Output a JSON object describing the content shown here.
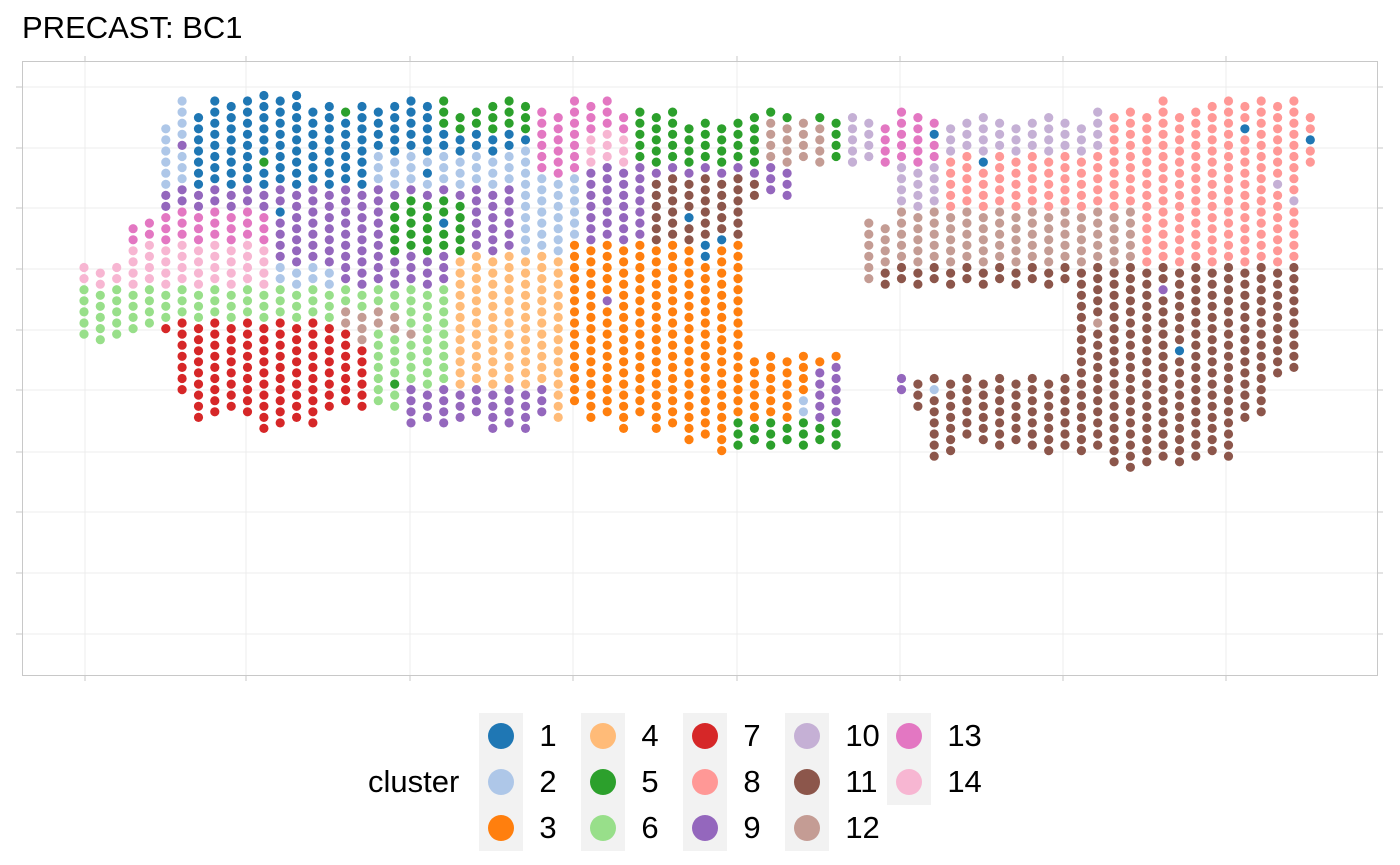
{
  "chart_data": {
    "type": "scatter",
    "title": "PRECAST: BC1",
    "xlabel": "",
    "ylabel": "",
    "grid": true,
    "legend_position": "bottom",
    "legend_title": "cluster",
    "clusters": [
      {
        "label": "1",
        "color": "#1f77b4"
      },
      {
        "label": "2",
        "color": "#aec7e8"
      },
      {
        "label": "3",
        "color": "#ff7f0e"
      },
      {
        "label": "4",
        "color": "#ffbb78"
      },
      {
        "label": "5",
        "color": "#2ca02c"
      },
      {
        "label": "6",
        "color": "#98df8a"
      },
      {
        "label": "7",
        "color": "#d62728"
      },
      {
        "label": "8",
        "color": "#ff9896"
      },
      {
        "label": "9",
        "color": "#9467bd"
      },
      {
        "label": "10",
        "color": "#c5b0d5"
      },
      {
        "label": "11",
        "color": "#8c564b"
      },
      {
        "label": "12",
        "color": "#c49c94"
      },
      {
        "label": "13",
        "color": "#e377c2"
      },
      {
        "label": "14",
        "color": "#f7b6d2"
      }
    ],
    "spatial_grid": {
      "columns": 76,
      "rows": 36,
      "column_extents": [
        [
          15,
          21
        ],
        [
          15,
          21
        ],
        [
          15,
          21
        ],
        [
          11,
          20
        ],
        [
          11,
          20
        ],
        [
          2,
          20
        ],
        [
          0,
          26
        ],
        [
          1,
          28
        ],
        [
          0,
          28
        ],
        [
          0,
          27
        ],
        [
          0,
          28
        ],
        [
          -1,
          29
        ],
        [
          0,
          29
        ],
        [
          -1,
          28
        ],
        [
          1,
          29
        ],
        [
          0,
          27
        ],
        [
          1,
          27
        ],
        [
          0,
          27
        ],
        [
          1,
          27
        ],
        [
          0,
          27
        ],
        [
          0,
          29
        ],
        [
          0,
          28
        ],
        [
          0,
          29
        ],
        [
          1,
          28
        ],
        [
          1,
          28
        ],
        [
          0,
          29
        ],
        [
          0,
          29
        ],
        [
          0,
          29
        ],
        [
          1,
          28
        ],
        [
          1,
          28
        ],
        [
          0,
          27
        ],
        [
          0,
          28
        ],
        [
          0,
          28
        ],
        [
          1,
          29
        ],
        [
          1,
          28
        ],
        [
          1,
          29
        ],
        [
          1,
          29
        ],
        [
          2,
          30
        ],
        [
          2,
          30
        ],
        [
          2,
          31
        ],
        [
          2,
          31
        ],
        [
          1,
          30
        ],
        [
          1,
          31
        ],
        [
          1,
          30
        ],
        [
          2,
          31
        ],
        [
          1,
          30
        ],
        [
          2,
          31
        ],
        [
          1,
          16
        ],
        [
          2,
          16
        ],
        [
          2,
          16
        ],
        [
          1,
          26
        ],
        [
          1,
          27
        ],
        [
          2,
          32
        ],
        [
          2,
          31
        ],
        [
          2,
          30
        ],
        [
          1,
          30
        ],
        [
          2,
          31
        ],
        [
          2,
          30
        ],
        [
          2,
          31
        ],
        [
          1,
          31
        ],
        [
          2,
          31
        ],
        [
          2,
          31
        ],
        [
          1,
          31
        ],
        [
          1,
          32
        ],
        [
          1,
          33
        ],
        [
          1,
          32
        ],
        [
          0,
          32
        ],
        [
          1,
          32
        ],
        [
          1,
          32
        ],
        [
          0,
          31
        ],
        [
          0,
          32
        ],
        [
          0,
          28
        ],
        [
          0,
          28
        ],
        [
          0,
          24
        ],
        [
          0,
          24
        ],
        [
          1,
          5
        ]
      ],
      "holes": [
        {
          "cols": [
            41,
            47
          ],
          "rows": [
            9,
            22
          ]
        },
        {
          "cols": [
            48,
            60
          ],
          "rows": [
            17,
            24
          ]
        },
        {
          "cols": [
            44,
            49
          ],
          "rows": [
            6,
            10
          ]
        }
      ]
    },
    "regions": [
      {
        "cluster": "2",
        "cols": [
          3,
          35
        ],
        "rows": [
          -1,
          12
        ]
      },
      {
        "cluster": "1",
        "cols": [
          7,
          17
        ],
        "rows": [
          0,
          8
        ]
      },
      {
        "cluster": "1",
        "cols": [
          11,
          26
        ],
        "rows": [
          -1,
          4
        ]
      },
      {
        "cluster": "1",
        "cols": [
          26,
          30
        ],
        "rows": [
          1,
          3
        ]
      },
      {
        "cluster": "9",
        "cols": [
          3,
          26
        ],
        "rows": [
          8,
          14
        ]
      },
      {
        "cluster": "9",
        "cols": [
          16,
          26
        ],
        "rows": [
          13,
          17
        ]
      },
      {
        "cluster": "13",
        "cols": [
          3,
          11
        ],
        "rows": [
          10,
          13
        ]
      },
      {
        "cluster": "14",
        "cols": [
          0,
          11
        ],
        "rows": [
          13,
          17
        ]
      },
      {
        "cluster": "6",
        "cols": [
          0,
          24
        ],
        "rows": [
          17,
          40
        ]
      },
      {
        "cluster": "7",
        "cols": [
          5,
          17
        ],
        "rows": [
          20,
          35
        ]
      },
      {
        "cluster": "12",
        "cols": [
          16,
          19
        ],
        "rows": [
          19,
          20
        ]
      },
      {
        "cluster": "4",
        "cols": [
          23,
          35
        ],
        "rows": [
          14,
          28
        ]
      },
      {
        "cluster": "3",
        "cols": [
          30,
          49
        ],
        "rows": [
          13,
          33
        ]
      },
      {
        "cluster": "9",
        "cols": [
          20,
          28
        ],
        "rows": [
          26,
          40
        ]
      },
      {
        "cluster": "2",
        "cols": [
          21,
          41
        ],
        "rows": [
          32,
          40
        ]
      },
      {
        "cluster": "2",
        "cols": [
          44,
          49
        ],
        "rows": [
          27,
          40
        ]
      },
      {
        "cluster": "5",
        "cols": [
          22,
          35
        ],
        "rows": [
          -1,
          2
        ]
      },
      {
        "cluster": "5",
        "cols": [
          19,
          23
        ],
        "rows": [
          9,
          13
        ]
      },
      {
        "cluster": "5",
        "cols": [
          35,
          40
        ],
        "rows": [
          3,
          8
        ]
      },
      {
        "cluster": "13",
        "cols": [
          28,
          42
        ],
        "rows": [
          -1,
          6
        ]
      },
      {
        "cluster": "14",
        "cols": [
          31,
          42
        ],
        "rows": [
          3,
          7
        ]
      },
      {
        "cluster": "5",
        "cols": [
          34,
          57
        ],
        "rows": [
          -1,
          7
        ]
      },
      {
        "cluster": "12",
        "cols": [
          42,
          45
        ],
        "rows": [
          2,
          5
        ]
      },
      {
        "cluster": "13",
        "cols": [
          47,
          56
        ],
        "rows": [
          1,
          6
        ]
      },
      {
        "cluster": "9",
        "cols": [
          31,
          44
        ],
        "rows": [
          6,
          12
        ]
      },
      {
        "cluster": "9",
        "cols": [
          42,
          48
        ],
        "rows": [
          9,
          22
        ]
      },
      {
        "cluster": "11",
        "cols": [
          35,
          41
        ],
        "rows": [
          7,
          12
        ]
      },
      {
        "cluster": "10",
        "cols": [
          47,
          76
        ],
        "rows": [
          0,
          18
        ]
      },
      {
        "cluster": "13",
        "cols": [
          49,
          60
        ],
        "rows": [
          1,
          5
        ]
      },
      {
        "cluster": "8",
        "cols": [
          53,
          76
        ],
        "rows": [
          0,
          15
        ]
      },
      {
        "cluster": "10",
        "cols": [
          53,
          62
        ],
        "rows": [
          0,
          4
        ]
      },
      {
        "cluster": "12",
        "cols": [
          47,
          64
        ],
        "rows": [
          10,
          20
        ]
      },
      {
        "cluster": "11",
        "cols": [
          49,
          76
        ],
        "rows": [
          15,
          40
        ]
      },
      {
        "cluster": "9",
        "cols": [
          45,
          50
        ],
        "rows": [
          24,
          32
        ]
      },
      {
        "cluster": "5",
        "cols": [
          40,
          51
        ],
        "rows": [
          29,
          40
        ]
      }
    ],
    "scatter_points": [
      {
        "cluster": "1",
        "col": 12,
        "row": 10
      },
      {
        "cluster": "1",
        "col": 21,
        "row": 6
      },
      {
        "cluster": "1",
        "col": 22,
        "row": 11
      },
      {
        "cluster": "1",
        "col": 37,
        "row": 10
      },
      {
        "cluster": "1",
        "col": 38,
        "row": 13
      },
      {
        "cluster": "1",
        "col": 38,
        "row": 14
      },
      {
        "cluster": "1",
        "col": 39,
        "row": 12
      },
      {
        "cluster": "1",
        "col": 41,
        "row": -1
      },
      {
        "cluster": "1",
        "col": 52,
        "row": 3
      },
      {
        "cluster": "1",
        "col": 55,
        "row": 5
      },
      {
        "cluster": "1",
        "col": 59,
        "row": 22
      },
      {
        "cluster": "1",
        "col": 67,
        "row": 22
      },
      {
        "cluster": "1",
        "col": 71,
        "row": 2
      },
      {
        "cluster": "1",
        "col": 75,
        "row": 3
      },
      {
        "cluster": "1",
        "col": 50,
        "row": 29
      },
      {
        "cluster": "1",
        "col": 53,
        "row": 32
      },
      {
        "cluster": "1",
        "col": 20,
        "row": 34
      },
      {
        "cluster": "1",
        "col": 22,
        "row": 34
      },
      {
        "cluster": "1",
        "col": 34,
        "row": 30
      },
      {
        "cluster": "1",
        "col": 29,
        "row": 33
      },
      {
        "cluster": "5",
        "col": 11,
        "row": 5
      },
      {
        "cluster": "5",
        "col": 16,
        "row": 1
      },
      {
        "cluster": "5",
        "col": 20,
        "row": 32
      },
      {
        "cluster": "5",
        "col": 19,
        "row": 25
      },
      {
        "cluster": "5",
        "col": 43,
        "row": 31
      },
      {
        "cluster": "5",
        "col": 50,
        "row": 21
      },
      {
        "cluster": "5",
        "col": 51,
        "row": 20
      },
      {
        "cluster": "5",
        "col": 46,
        "row": 19
      },
      {
        "cluster": "5",
        "col": 47,
        "row": 17
      },
      {
        "cluster": "5",
        "col": 12,
        "row": 34
      },
      {
        "cluster": "5",
        "col": 14,
        "row": 35
      },
      {
        "cluster": "5",
        "col": 28,
        "row": 32
      },
      {
        "cluster": "9",
        "col": 4,
        "row": 5
      },
      {
        "cluster": "9",
        "col": 6,
        "row": 4
      },
      {
        "cluster": "9",
        "col": 58,
        "row": 18
      },
      {
        "cluster": "9",
        "col": 57,
        "row": 17
      },
      {
        "cluster": "9",
        "col": 66,
        "row": 17
      },
      {
        "cluster": "9",
        "col": 13,
        "row": 35
      },
      {
        "cluster": "9",
        "col": 51,
        "row": 21
      },
      {
        "cluster": "9",
        "col": 32,
        "row": 18
      },
      {
        "cluster": "7",
        "col": 13,
        "row": 32
      },
      {
        "cluster": "7",
        "col": 17,
        "row": 36
      },
      {
        "cluster": "7",
        "col": 11,
        "row": 29
      },
      {
        "cluster": "7",
        "col": 9,
        "row": 31
      },
      {
        "cluster": "12",
        "col": 18,
        "row": 19
      },
      {
        "cluster": "12",
        "col": 19,
        "row": 19
      },
      {
        "cluster": "12",
        "col": 20,
        "row": 21
      },
      {
        "cluster": "12",
        "col": 17,
        "row": 21
      },
      {
        "cluster": "14",
        "col": 50,
        "row": 36
      },
      {
        "cluster": "13",
        "col": 51,
        "row": 35
      },
      {
        "cluster": "9",
        "col": 57,
        "row": 31
      },
      {
        "cluster": "9",
        "col": 56,
        "row": 32
      },
      {
        "cluster": "2",
        "col": 52,
        "row": 26
      },
      {
        "cluster": "2",
        "col": 45,
        "row": 16
      },
      {
        "cluster": "2",
        "col": 46,
        "row": 15
      },
      {
        "cluster": "10",
        "col": 73,
        "row": 7
      },
      {
        "cluster": "10",
        "col": 74,
        "row": 9
      },
      {
        "cluster": "8",
        "col": 74,
        "row": 12
      },
      {
        "cluster": "10",
        "col": 60,
        "row": 21
      },
      {
        "cluster": "12",
        "col": 62,
        "row": 20
      }
    ]
  }
}
